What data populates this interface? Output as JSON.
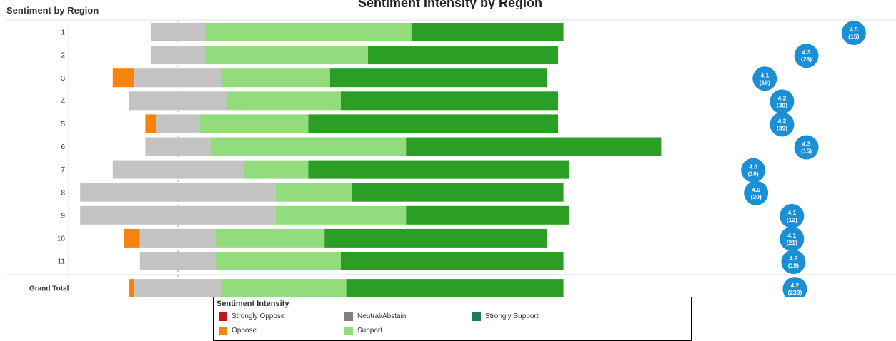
{
  "page": {
    "title": "Sentiment by Region"
  },
  "chart_data": {
    "type": "bar",
    "title": "Sentiment Intensity by Region",
    "stacked": "diverging",
    "categories": [
      "1",
      "2",
      "3",
      "4",
      "5",
      "6",
      "7",
      "8",
      "9",
      "10",
      "11",
      "Grand Total"
    ],
    "series": [
      {
        "name": "Strongly Oppose",
        "color": "#c0161b",
        "values": [
          0,
          0,
          0,
          0,
          0,
          0,
          0,
          0,
          0,
          0,
          0,
          0
        ]
      },
      {
        "name": "Oppose",
        "color": "#f7820c",
        "values": [
          0,
          0,
          4,
          0,
          2,
          0,
          0,
          0,
          0,
          3,
          0,
          1
        ]
      },
      {
        "name": "Neutral/Abstain",
        "color": "#c3c3c3",
        "values": [
          5,
          5,
          8,
          9,
          4,
          6,
          12,
          18,
          18,
          7,
          7,
          8
        ]
      },
      {
        "name": "Support",
        "color": "#93dc7e",
        "values": [
          38,
          30,
          20,
          21,
          20,
          36,
          12,
          14,
          24,
          20,
          23,
          23
        ]
      },
      {
        "name": "Strongly Support",
        "color": "#2a9e25",
        "values": [
          28,
          35,
          40,
          40,
          46,
          47,
          48,
          39,
          30,
          41,
          41,
          40
        ]
      }
    ],
    "scores": [
      {
        "avg": "4.5",
        "n": "(15)"
      },
      {
        "avg": "4.3",
        "n": "(26)"
      },
      {
        "avg": "4.1",
        "n": "(18)"
      },
      {
        "avg": "4.2",
        "n": "(30)"
      },
      {
        "avg": "4.2",
        "n": "(39)"
      },
      {
        "avg": "4.3",
        "n": "(15)"
      },
      {
        "avg": "4.0",
        "n": "(18)"
      },
      {
        "avg": "4.0",
        "n": "(20)"
      },
      {
        "avg": "4.1",
        "n": "(12)"
      },
      {
        "avg": "4.1",
        "n": "(21)"
      },
      {
        "avg": "4.2",
        "n": "(19)"
      },
      {
        "avg": "4.2",
        "n": "(233)"
      }
    ],
    "score_color": "#1b8fd6",
    "legend": {
      "title": "Sentiment Intensity",
      "position": "bottom"
    },
    "grid": false
  }
}
